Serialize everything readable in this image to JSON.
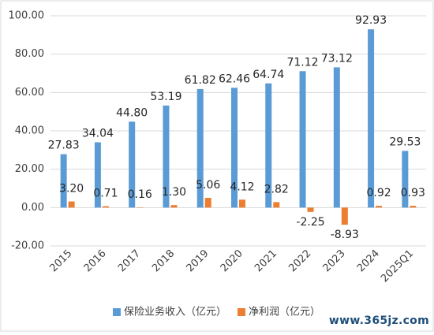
{
  "chart_data": {
    "type": "bar",
    "categories": [
      "2015",
      "2016",
      "2017",
      "2018",
      "2019",
      "2020",
      "2021",
      "2022",
      "2023",
      "2024",
      "2025Q1"
    ],
    "series": [
      {
        "name": "保险业务收入（亿元）",
        "color": "#5B9BD5",
        "values": [
          27.83,
          34.04,
          44.8,
          53.19,
          61.82,
          62.46,
          64.74,
          71.12,
          73.12,
          92.93,
          29.53
        ],
        "labels": [
          "27.83",
          "34.04",
          "44.80",
          "53.19",
          "61.82",
          "62.46",
          "64.74",
          "71.12",
          "73.12",
          "92.93",
          "29.53"
        ]
      },
      {
        "name": "净利润（亿元）",
        "color": "#ED7D31",
        "values": [
          3.2,
          0.71,
          0.16,
          1.3,
          5.06,
          4.12,
          2.82,
          -2.25,
          -8.93,
          0.92,
          0.93
        ],
        "labels": [
          "3.20",
          "0.71",
          "0.16",
          "1.30",
          "5.06",
          "4.12",
          "2.82",
          "-2.25",
          "-8.93",
          "0.92",
          "0.93"
        ]
      }
    ],
    "ylim": [
      -20,
      100
    ],
    "yticks": [
      "-20.00",
      "0.00",
      "20.00",
      "40.00",
      "60.00",
      "80.00",
      "100.00"
    ],
    "grid": true,
    "legend_position": "bottom"
  },
  "watermark": "www.365jz.com"
}
